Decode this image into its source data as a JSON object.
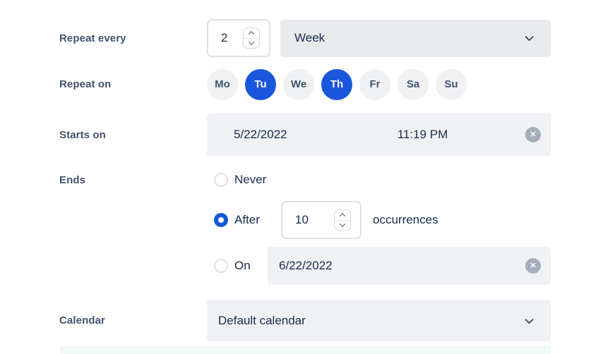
{
  "colors": {
    "accent_blue": "#1A56DB",
    "field_gray": "#F0F1F4",
    "dropdown_gray": "#E9EAED",
    "text_dark": "#172B4D",
    "label_slate": "#42526E"
  },
  "form": {
    "repeat_every": {
      "label": "Repeat every",
      "interval": "2",
      "unit": "Week"
    },
    "repeat_on": {
      "label": "Repeat on",
      "days": [
        {
          "label": "Mo",
          "selected": false
        },
        {
          "label": "Tu",
          "selected": true
        },
        {
          "label": "We",
          "selected": false
        },
        {
          "label": "Th",
          "selected": true
        },
        {
          "label": "Fr",
          "selected": false
        },
        {
          "label": "Sa",
          "selected": false
        },
        {
          "label": "Su",
          "selected": false
        }
      ]
    },
    "starts_on": {
      "label": "Starts on",
      "date": "5/22/2022",
      "time": "11:19 PM",
      "clear_icon": "clear-circle-x"
    },
    "ends": {
      "label": "Ends",
      "options": [
        {
          "label": "Never",
          "selected": false
        },
        {
          "label": "After",
          "selected": true,
          "count": "10",
          "suffix": "occurrences"
        },
        {
          "label": "On",
          "selected": false,
          "date": "6/22/2022",
          "clear_icon": "clear-circle-x"
        }
      ]
    },
    "calendar": {
      "label": "Calendar",
      "value": "Default calendar"
    },
    "icons": {
      "clear_glyph": "✕"
    }
  }
}
